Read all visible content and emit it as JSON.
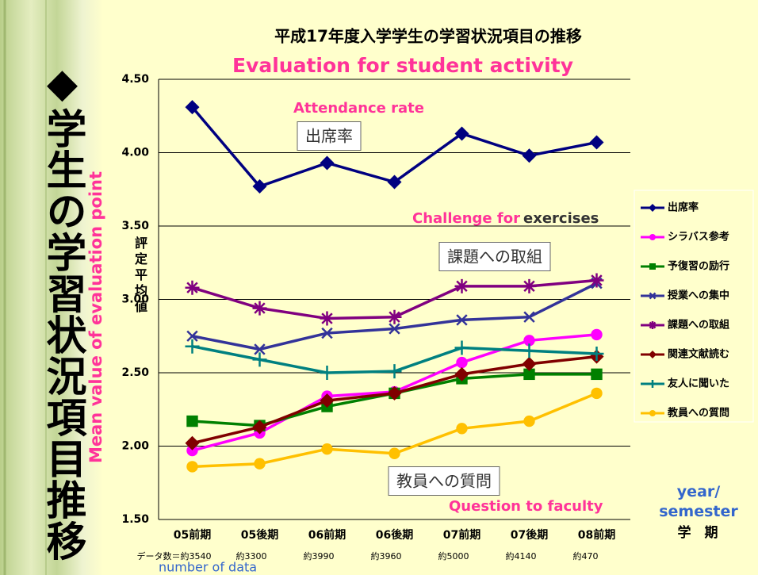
{
  "chart_data": {
    "type": "line",
    "title": "平成17年度入学学生の学習状況項目の推移",
    "subtitle": "Evaluation for student activity",
    "side_title": "◆学生の学習状況項目推移",
    "side_label": "Mean value of evaluation point",
    "y_label": "評定平均値",
    "x_label": "学　期",
    "x_label_en": "year/ semester",
    "data_count_label": "number of data",
    "categories": [
      "05前期",
      "05後期",
      "06前期",
      "06後期",
      "07前期",
      "07後期",
      "08前期"
    ],
    "data_counts": [
      "データ数＝約3540",
      "約3300",
      "約3990",
      "約3960",
      "約5000",
      "約4140",
      "約470"
    ],
    "series": [
      {
        "name": "出席率",
        "color": "#000080",
        "marker": "diamond",
        "values": [
          4.31,
          3.77,
          3.93,
          3.8,
          4.13,
          3.98,
          4.07
        ]
      },
      {
        "name": "シラバス参考",
        "color": "#ff00ff",
        "marker": "circle",
        "values": [
          1.97,
          2.09,
          2.34,
          2.37,
          2.57,
          2.72,
          2.76
        ]
      },
      {
        "name": "予復習の励行",
        "color": "#008000",
        "marker": "square",
        "values": [
          2.17,
          2.14,
          2.27,
          2.36,
          2.46,
          2.49,
          2.49
        ]
      },
      {
        "name": "授業への集中",
        "color": "#333399",
        "marker": "x",
        "values": [
          2.75,
          2.66,
          2.77,
          2.8,
          2.86,
          2.88,
          3.11
        ]
      },
      {
        "name": "課題への取組",
        "color": "#800080",
        "marker": "star",
        "values": [
          3.08,
          2.94,
          2.87,
          2.88,
          3.09,
          3.09,
          3.13
        ]
      },
      {
        "name": "関連文献読む",
        "color": "#800000",
        "marker": "diamond",
        "values": [
          2.02,
          2.13,
          2.31,
          2.36,
          2.49,
          2.56,
          2.61
        ]
      },
      {
        "name": "友人に聞いた",
        "color": "#008080",
        "marker": "plus",
        "values": [
          2.68,
          2.59,
          2.5,
          2.51,
          2.67,
          2.65,
          2.63
        ]
      },
      {
        "name": "教員への質問",
        "color": "#ffc000",
        "marker": "circle",
        "values": [
          1.86,
          1.88,
          1.98,
          1.95,
          2.12,
          2.17,
          2.36
        ]
      }
    ],
    "ylim": [
      1.5,
      4.5
    ],
    "yticks": [
      {
        "value": 1.5,
        "label": "1.50"
      },
      {
        "value": 2.0,
        "label": "2.00"
      },
      {
        "value": 2.5,
        "label": "2.50"
      },
      {
        "value": 3.0,
        "label": "3.00"
      },
      {
        "value": 3.5,
        "label": "3.50"
      },
      {
        "value": 4.0,
        "label": "4.00"
      },
      {
        "value": 4.5,
        "label": "4.50"
      }
    ],
    "grid": true,
    "legend": "right",
    "annotations": [
      {
        "text": "Attendance rate",
        "color": "#ff3399"
      },
      {
        "text": "出席率",
        "color": "#333333"
      },
      {
        "text": "Challenge for",
        "color": "#ff3399"
      },
      {
        "text": "exercises",
        "color": "#333333"
      },
      {
        "text": "課題への取組",
        "color": "#333333"
      },
      {
        "text": "教員への質問",
        "color": "#333333"
      },
      {
        "text": "Question to faculty",
        "color": "#ff3399"
      }
    ]
  }
}
